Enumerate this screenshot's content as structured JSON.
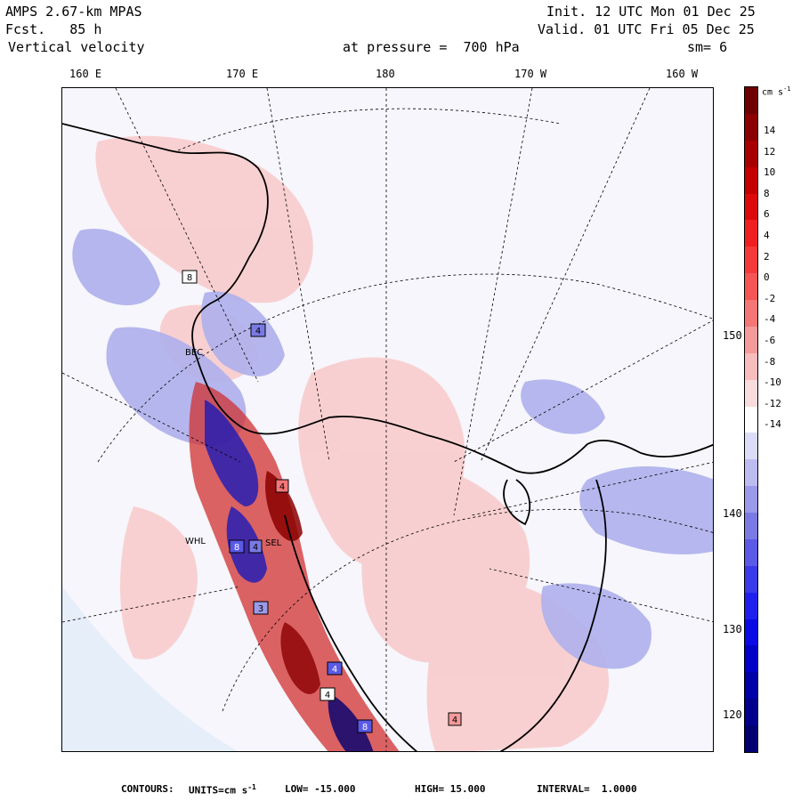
{
  "header": {
    "model": "AMPS 2.67-km MPAS",
    "forecast": "Fcst.   85 h",
    "field": "Vertical velocity",
    "init": "Init. 12 UTC Mon 01 Dec 25",
    "valid": "Valid. 01 UTC Fri 05 Dec 25",
    "level": "at pressure =  700 hPa",
    "smooth": "sm= 6"
  },
  "longitude_labels": [
    "160 E",
    "170 E",
    "180",
    "170 W",
    "160 W"
  ],
  "latitude_labels": [
    "150 W",
    "140 W",
    "130 W",
    "120 W"
  ],
  "colorbar": {
    "unit": "cm s",
    "unit_exp": "-1",
    "ticks": [
      "14",
      "12",
      "10",
      "8",
      "6",
      "4",
      "2",
      "0",
      "-2",
      "-4",
      "-6",
      "-8",
      "-10",
      "-12",
      "-14"
    ],
    "colors_top_to_bottom": [
      "#6e0000",
      "#8b0000",
      "#a80000",
      "#c40000",
      "#dc0a0a",
      "#f02020",
      "#f53a3a",
      "#f55555",
      "#f57676",
      "#f59a9a",
      "#f7bcbc",
      "#fadcdc",
      "#ffffff",
      "#dcdcf8",
      "#bcbcf0",
      "#9a9ae8",
      "#7a7ae4",
      "#5a5ae6",
      "#3a3ae8",
      "#2020ee",
      "#0a0ae4",
      "#0000c8",
      "#0000a8",
      "#00008c",
      "#000070"
    ]
  },
  "stations": [
    "8",
    "4",
    "8",
    "4",
    "4",
    "3",
    "4",
    "4",
    "8",
    "4",
    "WHL",
    "SEL",
    "BEC"
  ],
  "footer": {
    "contours_label": "CONTOURS:",
    "units": "UNITS=cm s",
    "units_exp": "-1",
    "low": "LOW= -15.000",
    "high": "HIGH= 15.000",
    "interval": "INTERVAL=  1.0000"
  }
}
